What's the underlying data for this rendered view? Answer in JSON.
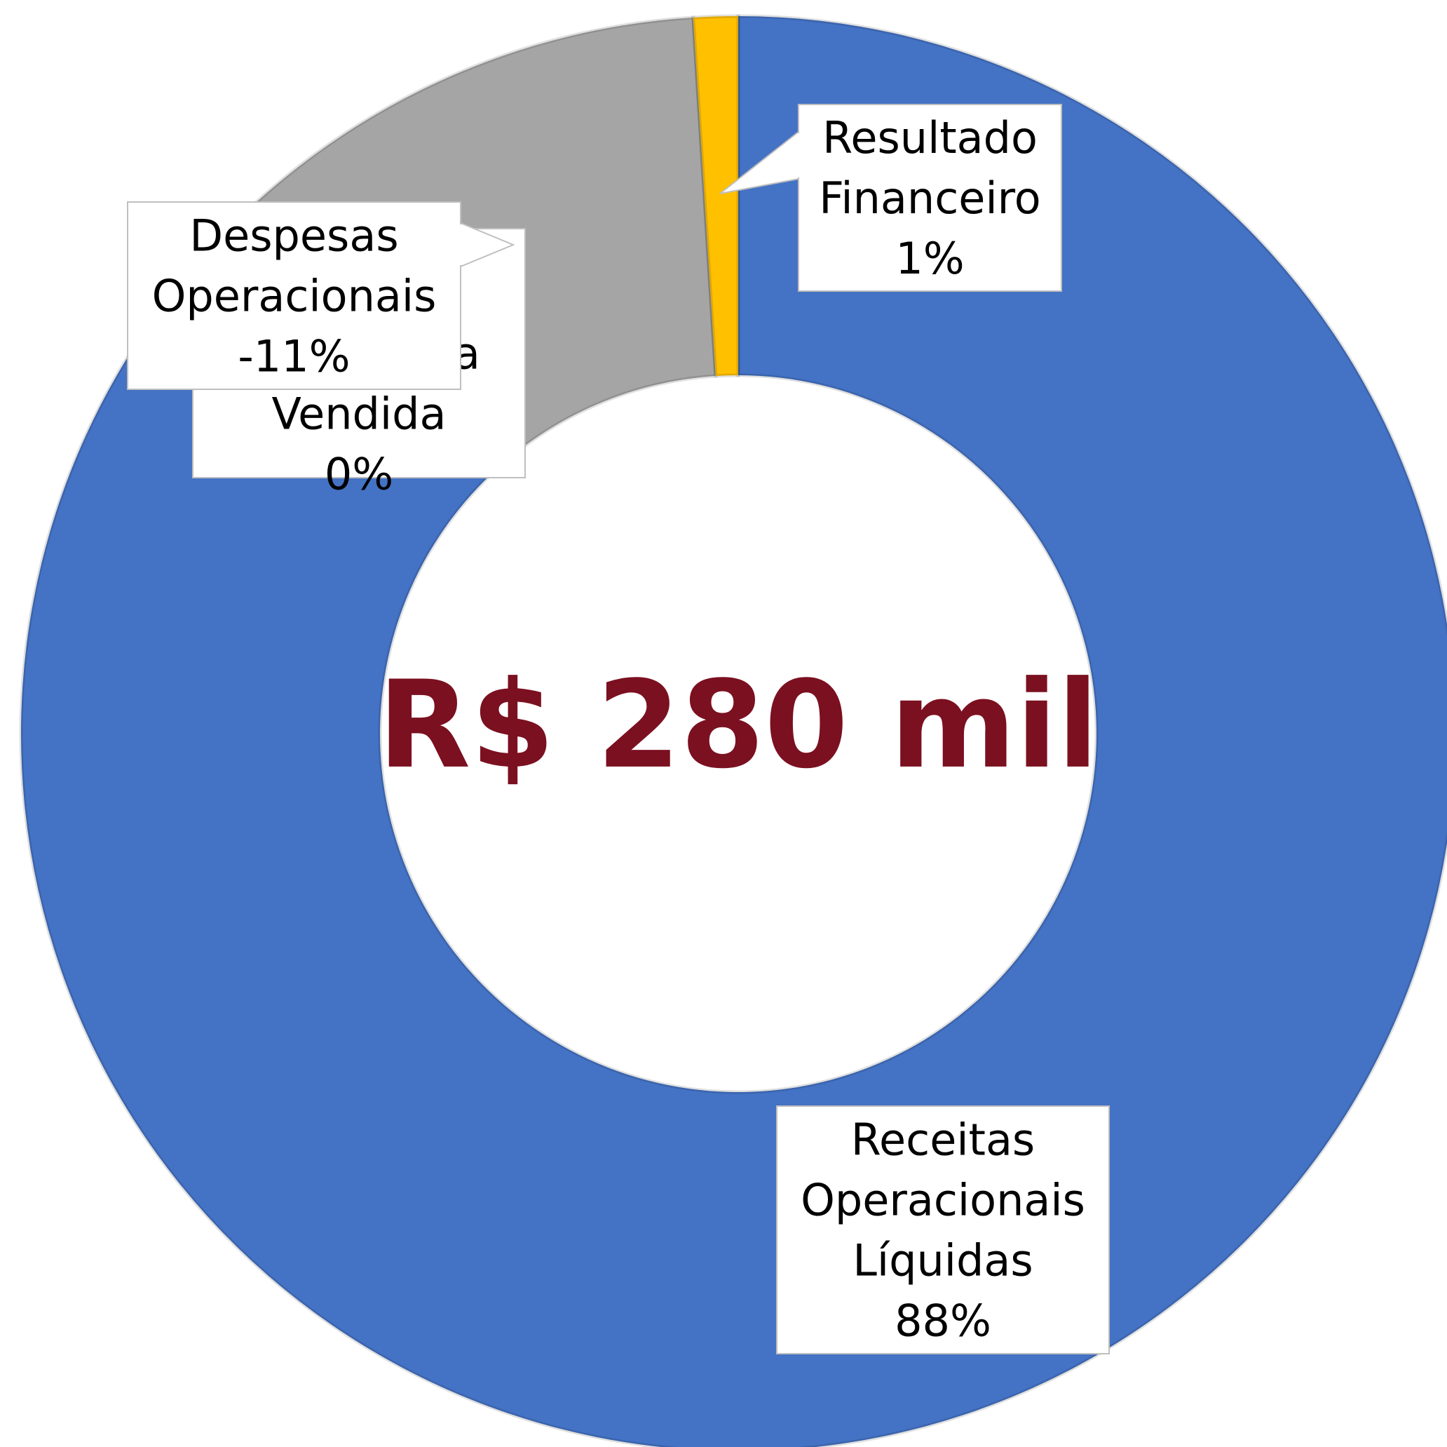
{
  "chart_data": {
    "type": "donut",
    "center_text": "R$ 280 mil",
    "categories": [
      "Receitas Operacionais Líquidas",
      "Custo da Mercadoria Vendida",
      "Despesas Operacionais",
      "Resultado Financeiro"
    ],
    "values": [
      88,
      0,
      -11,
      1
    ],
    "value_labels": [
      "88%",
      "0%",
      "-11%",
      "1%"
    ],
    "colors": [
      "#4472c4",
      "#ed7d31",
      "#a5a5a5",
      "#ffc000"
    ]
  }
}
